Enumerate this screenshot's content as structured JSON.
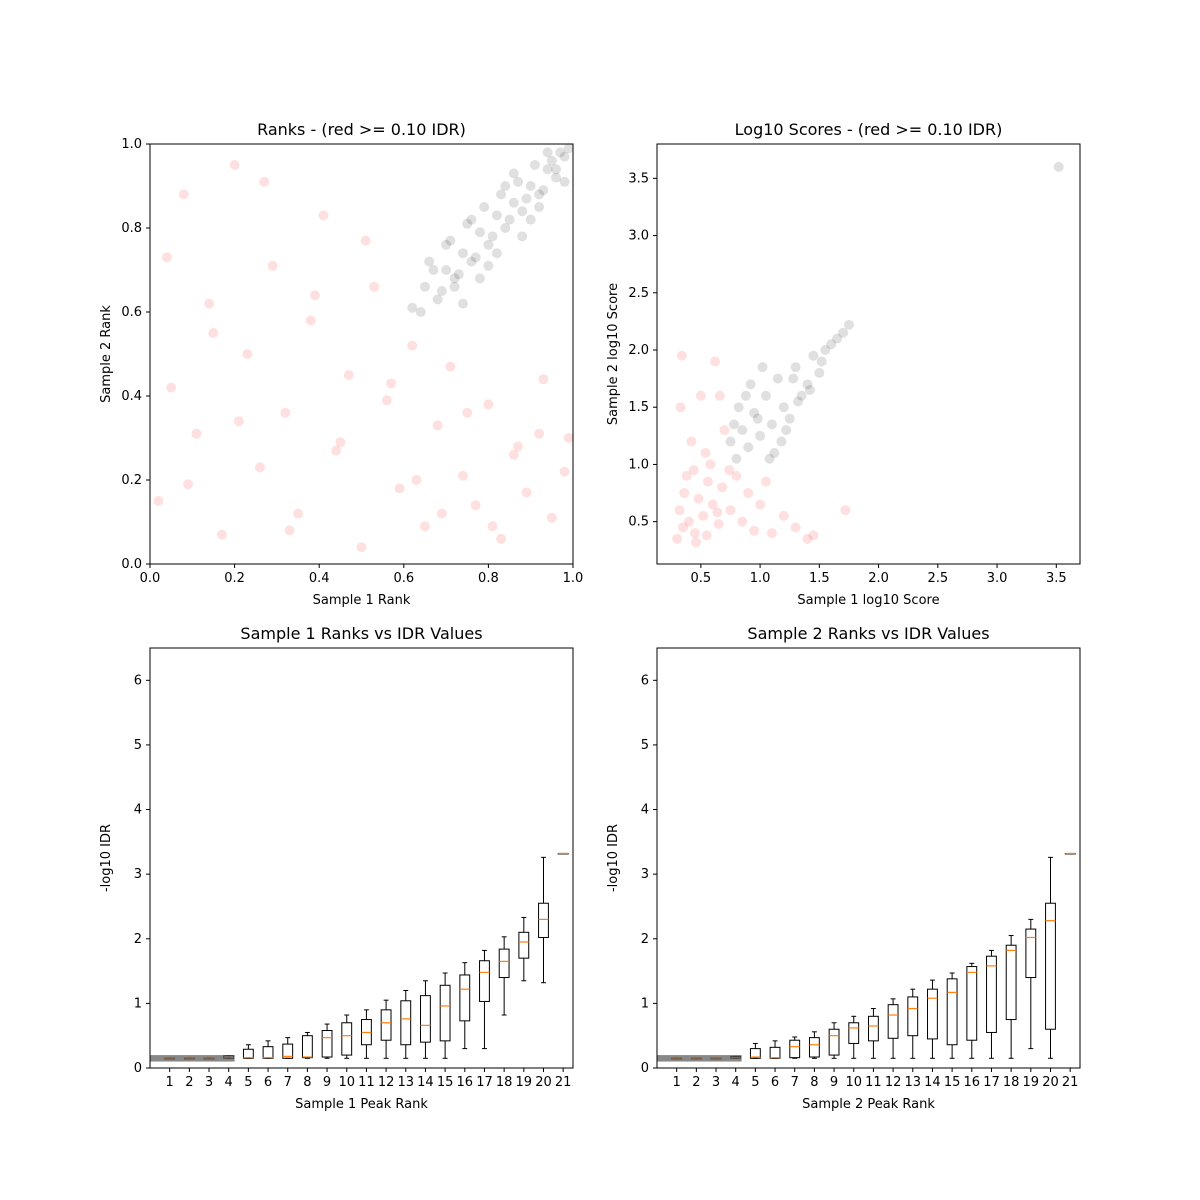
{
  "chart_data": [
    {
      "type": "scatter",
      "title": "Ranks - (red >= 0.10 IDR)",
      "xlabel": "Sample 1 Rank",
      "ylabel": "Sample 2 Rank",
      "xlim": [
        0,
        1
      ],
      "ylim": [
        0,
        1
      ],
      "xticks": [
        "0.0",
        "0.2",
        "0.4",
        "0.6",
        "0.8",
        "1.0"
      ],
      "yticks": [
        "0.0",
        "0.2",
        "0.4",
        "0.6",
        "0.8",
        "1.0"
      ],
      "colors": {
        "passing": "#000000",
        "failing": "#ff0000"
      },
      "series": [
        {
          "group": "idr_below_0.10",
          "color": "#000000",
          "x": [
            0.62,
            0.65,
            0.68,
            0.7,
            0.72,
            0.74,
            0.76,
            0.78,
            0.8,
            0.82,
            0.84,
            0.86,
            0.88,
            0.9,
            0.92,
            0.94,
            0.96,
            0.98,
            0.99,
            0.66,
            0.71,
            0.75,
            0.79,
            0.83,
            0.87,
            0.91,
            0.95,
            0.97,
            0.69,
            0.73,
            0.77,
            0.81,
            0.85,
            0.89,
            0.93,
            0.64,
            0.67,
            0.72,
            0.76,
            0.8,
            0.84,
            0.88,
            0.92,
            0.96,
            0.7,
            0.74,
            0.78,
            0.82,
            0.86,
            0.9,
            0.94,
            0.98
          ],
          "y": [
            0.61,
            0.66,
            0.63,
            0.7,
            0.68,
            0.74,
            0.72,
            0.79,
            0.76,
            0.83,
            0.8,
            0.86,
            0.84,
            0.9,
            0.88,
            0.94,
            0.92,
            0.97,
            0.99,
            0.72,
            0.77,
            0.81,
            0.85,
            0.88,
            0.91,
            0.95,
            0.96,
            0.98,
            0.65,
            0.69,
            0.73,
            0.78,
            0.82,
            0.87,
            0.89,
            0.6,
            0.7,
            0.66,
            0.82,
            0.71,
            0.9,
            0.78,
            0.85,
            0.94,
            0.76,
            0.62,
            0.68,
            0.74,
            0.93,
            0.82,
            0.98,
            0.91
          ]
        },
        {
          "group": "idr_at_or_above_0.10",
          "color": "#ff0000",
          "x": [
            0.02,
            0.05,
            0.08,
            0.11,
            0.14,
            0.17,
            0.2,
            0.23,
            0.26,
            0.29,
            0.32,
            0.35,
            0.38,
            0.41,
            0.44,
            0.47,
            0.5,
            0.53,
            0.56,
            0.59,
            0.62,
            0.65,
            0.68,
            0.71,
            0.74,
            0.77,
            0.8,
            0.83,
            0.86,
            0.89,
            0.92,
            0.95,
            0.98,
            0.04,
            0.09,
            0.15,
            0.21,
            0.27,
            0.33,
            0.39,
            0.45,
            0.51,
            0.57,
            0.63,
            0.69,
            0.75,
            0.81,
            0.87,
            0.93,
            0.99
          ],
          "y": [
            0.15,
            0.42,
            0.88,
            0.31,
            0.62,
            0.07,
            0.95,
            0.5,
            0.23,
            0.71,
            0.36,
            0.12,
            0.58,
            0.83,
            0.27,
            0.45,
            0.04,
            0.66,
            0.39,
            0.18,
            0.52,
            0.09,
            0.33,
            0.47,
            0.21,
            0.14,
            0.38,
            0.06,
            0.26,
            0.17,
            0.31,
            0.11,
            0.22,
            0.73,
            0.19,
            0.55,
            0.34,
            0.91,
            0.08,
            0.64,
            0.29,
            0.77,
            0.43,
            0.2,
            0.12,
            0.36,
            0.09,
            0.28,
            0.44,
            0.3
          ]
        }
      ]
    },
    {
      "type": "scatter",
      "title": "Log10 Scores - (red >= 0.10 IDR)",
      "xlabel": "Sample 1 log10 Score",
      "ylabel": "Sample 2 log10 Score",
      "xlim": [
        0.13,
        3.7
      ],
      "ylim": [
        0.13,
        3.8
      ],
      "xticks": [
        "0.5",
        "1.0",
        "1.5",
        "2.0",
        "2.5",
        "3.0",
        "3.5"
      ],
      "yticks": [
        "0.5",
        "1.0",
        "1.5",
        "2.0",
        "2.5",
        "3.0",
        "3.5"
      ],
      "series": [
        {
          "group": "idr_below_0.10",
          "color": "#000000",
          "x": [
            0.75,
            0.8,
            0.85,
            0.9,
            0.95,
            1.0,
            1.05,
            1.1,
            1.15,
            1.2,
            1.25,
            1.3,
            1.35,
            1.4,
            1.45,
            1.5,
            1.55,
            1.6,
            1.65,
            1.7,
            1.75,
            0.82,
            0.92,
            1.02,
            1.12,
            1.22,
            1.32,
            1.42,
            1.52,
            0.78,
            0.88,
            0.98,
            1.08,
            1.18,
            1.28,
            3.52
          ],
          "y": [
            1.2,
            1.05,
            1.3,
            1.15,
            1.45,
            1.25,
            1.6,
            1.35,
            1.75,
            1.5,
            1.4,
            1.85,
            1.6,
            1.7,
            1.95,
            1.8,
            2.0,
            2.05,
            2.1,
            2.15,
            2.22,
            1.5,
            1.7,
            1.85,
            1.1,
            1.3,
            1.55,
            1.65,
            1.9,
            1.35,
            1.6,
            1.4,
            1.05,
            1.2,
            1.75,
            3.6
          ]
        },
        {
          "group": "idr_at_or_above_0.10",
          "color": "#ff0000",
          "x": [
            0.3,
            0.32,
            0.35,
            0.38,
            0.4,
            0.42,
            0.45,
            0.48,
            0.5,
            0.52,
            0.55,
            0.58,
            0.6,
            0.62,
            0.65,
            0.68,
            0.7,
            0.75,
            0.8,
            0.85,
            0.9,
            0.95,
            1.0,
            1.05,
            1.1,
            1.2,
            1.3,
            1.4,
            0.33,
            0.36,
            0.44,
            0.54,
            0.64,
            0.74,
            0.34,
            0.46,
            0.56,
            0.66,
            1.45,
            1.72
          ],
          "y": [
            0.35,
            0.6,
            0.45,
            0.9,
            0.5,
            1.2,
            0.4,
            0.7,
            1.6,
            0.55,
            0.38,
            1.0,
            0.65,
            1.9,
            0.48,
            0.8,
            1.3,
            0.6,
            0.9,
            0.5,
            0.75,
            0.42,
            0.65,
            0.85,
            0.4,
            0.55,
            0.45,
            0.35,
            1.5,
            0.75,
            0.95,
            1.1,
            0.58,
            0.95,
            1.95,
            0.32,
            0.85,
            1.6,
            0.38,
            0.6
          ]
        }
      ]
    },
    {
      "type": "box",
      "title": "Sample 1 Ranks vs IDR Values",
      "xlabel": "Sample 1 Peak Rank",
      "ylabel": "-log10 IDR",
      "ylim": [
        0,
        6.5
      ],
      "xlim": [
        0,
        21
      ],
      "xticks": [
        "1",
        "2",
        "3",
        "4",
        "5",
        "6",
        "7",
        "8",
        "9",
        "10",
        "11",
        "12",
        "13",
        "14",
        "15",
        "16",
        "17",
        "18",
        "19",
        "20",
        "21"
      ],
      "yticks": [
        "0",
        "1",
        "2",
        "3",
        "4",
        "5",
        "6"
      ],
      "median_color": "#ff7f0e",
      "boxes": [
        {
          "pos": 1,
          "wlo": 0.15,
          "q1": 0.15,
          "med": 0.15,
          "q3": 0.15,
          "whi": 0.15
        },
        {
          "pos": 2,
          "wlo": 0.15,
          "q1": 0.15,
          "med": 0.15,
          "q3": 0.15,
          "whi": 0.15
        },
        {
          "pos": 3,
          "wlo": 0.15,
          "q1": 0.15,
          "med": 0.15,
          "q3": 0.15,
          "whi": 0.15
        },
        {
          "pos": 4,
          "wlo": 0.15,
          "q1": 0.15,
          "med": 0.16,
          "q3": 0.19,
          "whi": 0.19
        },
        {
          "pos": 5,
          "wlo": 0.15,
          "q1": 0.15,
          "med": 0.16,
          "q3": 0.29,
          "whi": 0.36
        },
        {
          "pos": 6,
          "wlo": 0.15,
          "q1": 0.15,
          "med": 0.16,
          "q3": 0.33,
          "whi": 0.42
        },
        {
          "pos": 7,
          "wlo": 0.15,
          "q1": 0.15,
          "med": 0.18,
          "q3": 0.37,
          "whi": 0.47
        },
        {
          "pos": 8,
          "wlo": 0.15,
          "q1": 0.16,
          "med": 0.17,
          "q3": 0.5,
          "whi": 0.55
        },
        {
          "pos": 9,
          "wlo": 0.15,
          "q1": 0.17,
          "med": 0.47,
          "q3": 0.58,
          "whi": 0.68
        },
        {
          "pos": 10,
          "wlo": 0.15,
          "q1": 0.2,
          "med": 0.5,
          "q3": 0.7,
          "whi": 0.82
        },
        {
          "pos": 11,
          "wlo": 0.15,
          "q1": 0.36,
          "med": 0.55,
          "q3": 0.75,
          "whi": 0.9
        },
        {
          "pos": 12,
          "wlo": 0.15,
          "q1": 0.43,
          "med": 0.7,
          "q3": 0.9,
          "whi": 1.05
        },
        {
          "pos": 13,
          "wlo": 0.15,
          "q1": 0.36,
          "med": 0.76,
          "q3": 1.04,
          "whi": 1.2
        },
        {
          "pos": 14,
          "wlo": 0.15,
          "q1": 0.4,
          "med": 0.66,
          "q3": 1.12,
          "whi": 1.35
        },
        {
          "pos": 15,
          "wlo": 0.15,
          "q1": 0.42,
          "med": 0.96,
          "q3": 1.28,
          "whi": 1.47
        },
        {
          "pos": 16,
          "wlo": 0.3,
          "q1": 0.73,
          "med": 1.22,
          "q3": 1.44,
          "whi": 1.63
        },
        {
          "pos": 17,
          "wlo": 0.3,
          "q1": 1.03,
          "med": 1.48,
          "q3": 1.66,
          "whi": 1.82
        },
        {
          "pos": 18,
          "wlo": 0.82,
          "q1": 1.4,
          "med": 1.65,
          "q3": 1.84,
          "whi": 2.03
        },
        {
          "pos": 19,
          "wlo": 1.35,
          "q1": 1.7,
          "med": 1.95,
          "q3": 2.1,
          "whi": 2.33
        },
        {
          "pos": 20,
          "wlo": 1.32,
          "q1": 2.02,
          "med": 2.3,
          "q3": 2.55,
          "whi": 3.26
        },
        {
          "pos": 21,
          "wlo": 3.32,
          "q1": 3.32,
          "med": 3.32,
          "q3": 3.32,
          "whi": 3.32
        }
      ]
    },
    {
      "type": "box",
      "title": "Sample 2 Ranks vs IDR Values",
      "xlabel": "Sample 2 Peak Rank",
      "ylabel": "-log10 IDR",
      "ylim": [
        0,
        6.5
      ],
      "xlim": [
        0,
        21
      ],
      "xticks": [
        "1",
        "2",
        "3",
        "4",
        "5",
        "6",
        "7",
        "8",
        "9",
        "10",
        "11",
        "12",
        "13",
        "14",
        "15",
        "16",
        "17",
        "18",
        "19",
        "20",
        "21"
      ],
      "yticks": [
        "0",
        "1",
        "2",
        "3",
        "4",
        "5",
        "6"
      ],
      "median_color": "#ff7f0e",
      "boxes": [
        {
          "pos": 1,
          "wlo": 0.15,
          "q1": 0.15,
          "med": 0.15,
          "q3": 0.15,
          "whi": 0.15
        },
        {
          "pos": 2,
          "wlo": 0.15,
          "q1": 0.15,
          "med": 0.15,
          "q3": 0.15,
          "whi": 0.15
        },
        {
          "pos": 3,
          "wlo": 0.15,
          "q1": 0.15,
          "med": 0.15,
          "q3": 0.15,
          "whi": 0.15
        },
        {
          "pos": 4,
          "wlo": 0.15,
          "q1": 0.15,
          "med": 0.16,
          "q3": 0.18,
          "whi": 0.18
        },
        {
          "pos": 5,
          "wlo": 0.15,
          "q1": 0.15,
          "med": 0.17,
          "q3": 0.3,
          "whi": 0.38
        },
        {
          "pos": 6,
          "wlo": 0.15,
          "q1": 0.15,
          "med": 0.16,
          "q3": 0.32,
          "whi": 0.42
        },
        {
          "pos": 7,
          "wlo": 0.15,
          "q1": 0.16,
          "med": 0.33,
          "q3": 0.43,
          "whi": 0.48
        },
        {
          "pos": 8,
          "wlo": 0.15,
          "q1": 0.17,
          "med": 0.36,
          "q3": 0.47,
          "whi": 0.56
        },
        {
          "pos": 9,
          "wlo": 0.15,
          "q1": 0.2,
          "med": 0.5,
          "q3": 0.6,
          "whi": 0.7
        },
        {
          "pos": 10,
          "wlo": 0.15,
          "q1": 0.38,
          "med": 0.62,
          "q3": 0.7,
          "whi": 0.8
        },
        {
          "pos": 11,
          "wlo": 0.15,
          "q1": 0.42,
          "med": 0.65,
          "q3": 0.8,
          "whi": 0.92
        },
        {
          "pos": 12,
          "wlo": 0.15,
          "q1": 0.46,
          "med": 0.82,
          "q3": 0.98,
          "whi": 1.07
        },
        {
          "pos": 13,
          "wlo": 0.15,
          "q1": 0.5,
          "med": 0.92,
          "q3": 1.1,
          "whi": 1.22
        },
        {
          "pos": 14,
          "wlo": 0.15,
          "q1": 0.45,
          "med": 1.08,
          "q3": 1.22,
          "whi": 1.36
        },
        {
          "pos": 15,
          "wlo": 0.15,
          "q1": 0.36,
          "med": 1.17,
          "q3": 1.38,
          "whi": 1.47
        },
        {
          "pos": 16,
          "wlo": 0.15,
          "q1": 0.43,
          "med": 1.48,
          "q3": 1.57,
          "whi": 1.62
        },
        {
          "pos": 17,
          "wlo": 0.15,
          "q1": 0.55,
          "med": 1.58,
          "q3": 1.73,
          "whi": 1.82
        },
        {
          "pos": 18,
          "wlo": 0.15,
          "q1": 0.75,
          "med": 1.82,
          "q3": 1.9,
          "whi": 2.05
        },
        {
          "pos": 19,
          "wlo": 0.3,
          "q1": 1.4,
          "med": 2.02,
          "q3": 2.15,
          "whi": 2.3
        },
        {
          "pos": 20,
          "wlo": 0.15,
          "q1": 0.6,
          "med": 2.28,
          "q3": 2.55,
          "whi": 3.26
        },
        {
          "pos": 21,
          "wlo": 3.32,
          "q1": 3.32,
          "med": 3.32,
          "q3": 3.32,
          "whi": 3.32
        }
      ]
    }
  ]
}
